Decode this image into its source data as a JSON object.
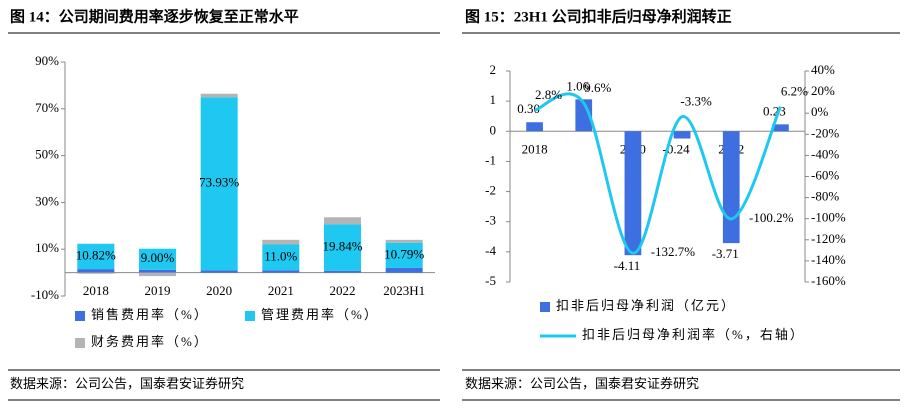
{
  "chart_data": [
    {
      "type": "bar",
      "stacked": true,
      "title": "图 14：公司期间费用率逐步恢复至正常水平",
      "source": "数据来源：公司公告，国泰君安证券研究",
      "categories": [
        "2018",
        "2019",
        "2020",
        "2021",
        "2022",
        "2023H1"
      ],
      "series": [
        {
          "name": "销售费用率（%）",
          "color": "#3d6fe0",
          "values": [
            1.5,
            1.2,
            1.0,
            1.0,
            0.8,
            2.0
          ]
        },
        {
          "name": "管理费用率（%）",
          "color": "#1ec8f0",
          "values": [
            10.82,
            9.0,
            73.93,
            11.0,
            19.84,
            10.79
          ],
          "value_labels": [
            "10.82%",
            "9.00%",
            "73.93%",
            "11.0%",
            "19.84%",
            "10.79%"
          ]
        },
        {
          "name": "财务费用率（%）",
          "color": "#b4b4b4",
          "values": [
            -0.5,
            -1.5,
            1.5,
            2.0,
            3.0,
            1.2
          ]
        }
      ],
      "ylim": [
        -10,
        90
      ],
      "yticks": [
        {
          "value": -10,
          "label": "-10%"
        },
        {
          "value": 10,
          "label": "10%"
        },
        {
          "value": 30,
          "label": "30%"
        },
        {
          "value": 50,
          "label": "50%"
        },
        {
          "value": 70,
          "label": "70%"
        },
        {
          "value": 90,
          "label": "90%"
        }
      ]
    },
    {
      "type": "combo",
      "title": "图 15：23H1 公司扣非后归母净利润转正",
      "source": "数据来源：公司公告，国泰君安证券研究",
      "categories": [
        "2018",
        null,
        "2020",
        null,
        "2022",
        null
      ],
      "series": [
        {
          "name": "扣非后归母净利润（亿元）",
          "type": "bar",
          "color": "#3d6fe0",
          "values": [
            0.3,
            1.06,
            -4.11,
            -0.24,
            -3.71,
            0.23
          ],
          "value_labels": [
            "0.30",
            "1.06",
            "-4.11",
            "-0.24",
            "-3.71",
            "0.23"
          ]
        },
        {
          "name": "扣非后归母净利润率（%，右轴）",
          "type": "line",
          "axis": "y2",
          "color": "#1ec8f0",
          "values": [
            2.8,
            9.6,
            -132.7,
            -3.3,
            -100.2,
            6.2
          ],
          "value_labels": [
            "2.8%",
            "9.6%",
            "-132.7%",
            "-3.3%",
            "-100.2%",
            "6.2%"
          ]
        }
      ],
      "ylim": [
        -5,
        2
      ],
      "yticks": [
        -5,
        -4,
        -3,
        -2,
        -1,
        0,
        1,
        2
      ],
      "y2lim": [
        -160,
        40
      ],
      "y2ticks": [
        {
          "value": -160,
          "label": "-160%"
        },
        {
          "value": -140,
          "label": "-140%"
        },
        {
          "value": -120,
          "label": "-120%"
        },
        {
          "value": -100,
          "label": "-100%"
        },
        {
          "value": -80,
          "label": "-80%"
        },
        {
          "value": -60,
          "label": "-60%"
        },
        {
          "value": -40,
          "label": "-40%"
        },
        {
          "value": -20,
          "label": "-20%"
        },
        {
          "value": 0,
          "label": "0%"
        },
        {
          "value": 20,
          "label": "20%"
        },
        {
          "value": 40,
          "label": "40%"
        }
      ]
    }
  ]
}
